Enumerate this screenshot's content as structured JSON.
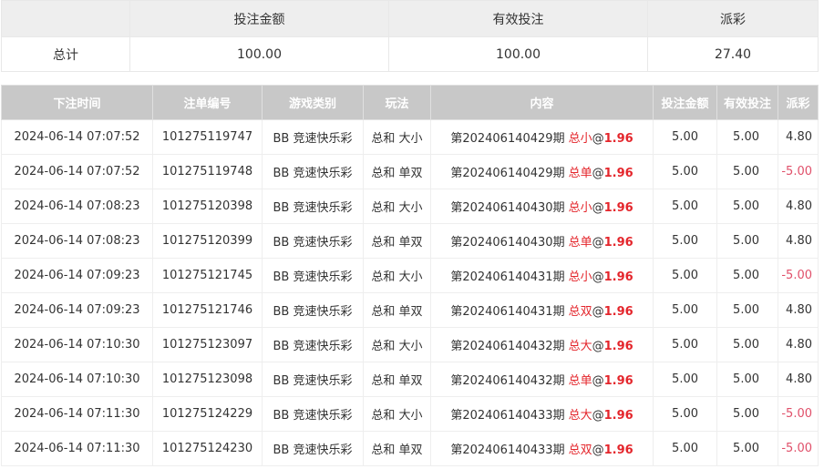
{
  "summary": {
    "headers": [
      "",
      "投注金额",
      "有效投注",
      "派彩"
    ],
    "label": "总计",
    "bet": "100.00",
    "valid": "100.00",
    "payout": "27.40"
  },
  "table": {
    "headers": [
      "下注时间",
      "注单编号",
      "游戏类别",
      "玩法",
      "内容",
      "投注金额",
      "有效投注",
      "派彩"
    ],
    "rows": [
      {
        "time": "2024-06-14 07:07:52",
        "id": "101275119747",
        "game": "BB 竞速快乐彩",
        "play": "总和 大小",
        "period": "第202406140429期",
        "pick": "总小",
        "at": "@",
        "odds": "1.96",
        "bet": "5.00",
        "valid": "5.00",
        "payout": "4.80"
      },
      {
        "time": "2024-06-14 07:07:52",
        "id": "101275119748",
        "game": "BB 竞速快乐彩",
        "play": "总和 单双",
        "period": "第202406140429期",
        "pick": "总单",
        "at": "@",
        "odds": "1.96",
        "bet": "5.00",
        "valid": "5.00",
        "payout": "-5.00"
      },
      {
        "time": "2024-06-14 07:08:23",
        "id": "101275120398",
        "game": "BB 竞速快乐彩",
        "play": "总和 大小",
        "period": "第202406140430期",
        "pick": "总小",
        "at": "@",
        "odds": "1.96",
        "bet": "5.00",
        "valid": "5.00",
        "payout": "4.80"
      },
      {
        "time": "2024-06-14 07:08:23",
        "id": "101275120399",
        "game": "BB 竞速快乐彩",
        "play": "总和 单双",
        "period": "第202406140430期",
        "pick": "总单",
        "at": "@",
        "odds": "1.96",
        "bet": "5.00",
        "valid": "5.00",
        "payout": "4.80"
      },
      {
        "time": "2024-06-14 07:09:23",
        "id": "101275121745",
        "game": "BB 竞速快乐彩",
        "play": "总和 大小",
        "period": "第202406140431期",
        "pick": "总小",
        "at": "@",
        "odds": "1.96",
        "bet": "5.00",
        "valid": "5.00",
        "payout": "-5.00"
      },
      {
        "time": "2024-06-14 07:09:23",
        "id": "101275121746",
        "game": "BB 竞速快乐彩",
        "play": "总和 单双",
        "period": "第202406140431期",
        "pick": "总双",
        "at": "@",
        "odds": "1.96",
        "bet": "5.00",
        "valid": "5.00",
        "payout": "4.80"
      },
      {
        "time": "2024-06-14 07:10:30",
        "id": "101275123097",
        "game": "BB 竞速快乐彩",
        "play": "总和 大小",
        "period": "第202406140432期",
        "pick": "总大",
        "at": "@",
        "odds": "1.96",
        "bet": "5.00",
        "valid": "5.00",
        "payout": "4.80"
      },
      {
        "time": "2024-06-14 07:10:30",
        "id": "101275123098",
        "game": "BB 竞速快乐彩",
        "play": "总和 单双",
        "period": "第202406140432期",
        "pick": "总单",
        "at": "@",
        "odds": "1.96",
        "bet": "5.00",
        "valid": "5.00",
        "payout": "4.80"
      },
      {
        "time": "2024-06-14 07:11:30",
        "id": "101275124229",
        "game": "BB 竞速快乐彩",
        "play": "总和 大小",
        "period": "第202406140433期",
        "pick": "总大",
        "at": "@",
        "odds": "1.96",
        "bet": "5.00",
        "valid": "5.00",
        "payout": "-5.00"
      },
      {
        "time": "2024-06-14 07:11:30",
        "id": "101275124230",
        "game": "BB 竞速快乐彩",
        "play": "总和 单双",
        "period": "第202406140433期",
        "pick": "总双",
        "at": "@",
        "odds": "1.96",
        "bet": "5.00",
        "valid": "5.00",
        "payout": "-5.00"
      }
    ]
  },
  "colors": {
    "pick": "#e4262c",
    "negative": "#e0506a",
    "header_bg": "#c8c8c8"
  }
}
